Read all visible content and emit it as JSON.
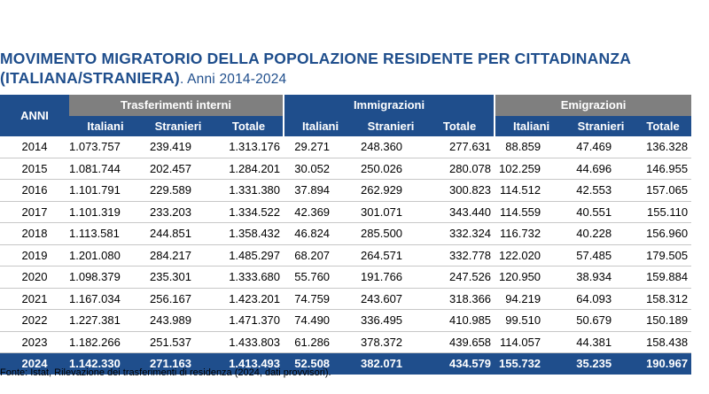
{
  "title": {
    "line1": "MOVIMENTO MIGRATORIO DELLA POPOLAZIONE RESIDENTE PER CITTADINANZA",
    "line2_bold": "(ITALIANA/STRANIERA)",
    "line2_tail": ". Anni 2014-2024"
  },
  "table": {
    "year_header": "ANNI",
    "groups": [
      "Trasferimenti interni",
      "Immigrazioni",
      "Emigrazioni"
    ],
    "subheaders": [
      "Italiani",
      "Stranieri",
      "Totale"
    ],
    "rows": [
      [
        "2014",
        "1.073.757",
        "239.419",
        "1.313.176",
        "29.271",
        "248.360",
        "277.631",
        "88.859",
        "47.469",
        "136.328"
      ],
      [
        "2015",
        "1.081.744",
        "202.457",
        "1.284.201",
        "30.052",
        "250.026",
        "280.078",
        "102.259",
        "44.696",
        "146.955"
      ],
      [
        "2016",
        "1.101.791",
        "229.589",
        "1.331.380",
        "37.894",
        "262.929",
        "300.823",
        "114.512",
        "42.553",
        "157.065"
      ],
      [
        "2017",
        "1.101.319",
        "233.203",
        "1.334.522",
        "42.369",
        "301.071",
        "343.440",
        "114.559",
        "40.551",
        "155.110"
      ],
      [
        "2018",
        "1.113.581",
        "244.851",
        "1.358.432",
        "46.824",
        "285.500",
        "332.324",
        "116.732",
        "40.228",
        "156.960"
      ],
      [
        "2019",
        "1.201.080",
        "284.217",
        "1.485.297",
        "68.207",
        "264.571",
        "332.778",
        "122.020",
        "57.485",
        "179.505"
      ],
      [
        "2020",
        "1.098.379",
        "235.301",
        "1.333.680",
        "55.760",
        "191.766",
        "247.526",
        "120.950",
        "38.934",
        "159.884"
      ],
      [
        "2021",
        "1.167.034",
        "256.167",
        "1.423.201",
        "74.759",
        "243.607",
        "318.366",
        "94.219",
        "64.093",
        "158.312"
      ],
      [
        "2022",
        "1.227.381",
        "243.989",
        "1.471.370",
        "74.490",
        "336.495",
        "410.985",
        "99.510",
        "50.679",
        "150.189"
      ],
      [
        "2023",
        "1.182.266",
        "251.537",
        "1.433.803",
        "61.286",
        "378.372",
        "439.658",
        "114.057",
        "44.381",
        "158.438"
      ],
      [
        "2024",
        "1.142.330",
        "271.163",
        "1.413.493",
        "52.508",
        "382.071",
        "434.579",
        "155.732",
        "35.235",
        "190.967"
      ]
    ]
  },
  "source": "Fonte: Istat, Rilevazione dei trasferimenti di residenza (2024, dati provvisori).",
  "colors": {
    "header_blue": "#1f4e8c",
    "group_gray": "#7f7f7f",
    "row_border": "#c7c7c7"
  }
}
